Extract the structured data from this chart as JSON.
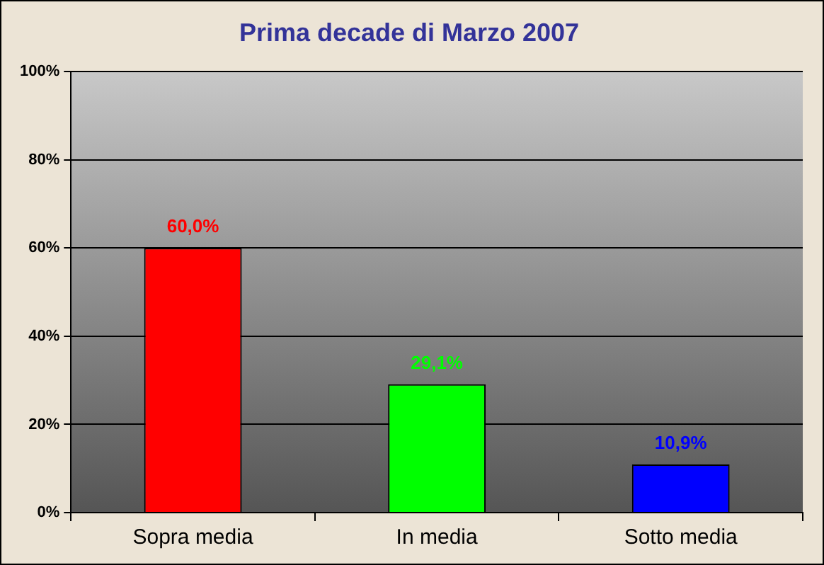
{
  "chart_data": {
    "type": "bar",
    "title": "Prima decade di Marzo 2007",
    "categories": [
      "Sopra media",
      "In media",
      "Sotto media"
    ],
    "values": [
      60,
      29.1,
      10.9
    ],
    "colors": [
      "#ff0000",
      "#00ff00",
      "#0000ff"
    ],
    "value_labels": [
      "60,0%",
      "29,1%",
      "10,9%"
    ],
    "ylim": [
      0,
      100
    ],
    "yticks": [
      {
        "value": 0,
        "label": "0%"
      },
      {
        "value": 20,
        "label": "20%"
      },
      {
        "value": 40,
        "label": "40%"
      },
      {
        "value": 60,
        "label": "60%"
      },
      {
        "value": 80,
        "label": "80%"
      },
      {
        "value": 100,
        "label": "100%"
      }
    ],
    "grid": "y",
    "legend": false
  }
}
